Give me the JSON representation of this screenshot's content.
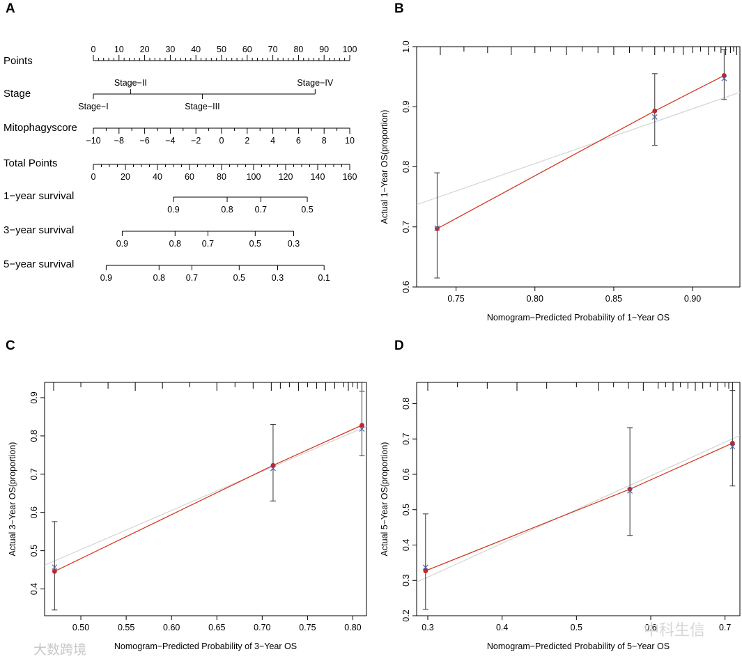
{
  "watermarks": {
    "left": "大数跨境",
    "right": "中科生信"
  },
  "chart_data": [
    {
      "panel": "A",
      "type": "nomogram",
      "rows": [
        {
          "label": "Points",
          "kind": "points",
          "ticks": [
            "0",
            "10",
            "20",
            "30",
            "40",
            "50",
            "60",
            "70",
            "80",
            "90",
            "100"
          ],
          "tick_values": [
            0,
            10,
            20,
            30,
            40,
            50,
            60,
            70,
            80,
            90,
            100
          ]
        },
        {
          "label": "Stage",
          "kind": "categorical",
          "levels": [
            {
              "name": "Stage−I",
              "points": 0,
              "side": "below"
            },
            {
              "name": "Stage−II",
              "points": 14.5,
              "side": "above"
            },
            {
              "name": "Stage−III",
              "points": 42.5,
              "side": "below"
            },
            {
              "name": "Stage−IV",
              "points": 86.5,
              "side": "above"
            }
          ]
        },
        {
          "label": "Mitophagyscore",
          "kind": "continuous",
          "ticks": [
            "−10",
            "−8",
            "−6",
            "−4",
            "−2",
            "0",
            "2",
            "4",
            "6",
            "8",
            "10"
          ],
          "tick_values": [
            -10,
            -8,
            -6,
            -4,
            -2,
            0,
            2,
            4,
            6,
            8,
            10
          ],
          "range": [
            -10,
            10
          ]
        },
        {
          "label": "Total Points",
          "kind": "total",
          "ticks": [
            "0",
            "20",
            "40",
            "60",
            "80",
            "100",
            "120",
            "140",
            "160"
          ],
          "tick_values": [
            0,
            20,
            40,
            60,
            80,
            100,
            120,
            140,
            160
          ]
        },
        {
          "label": "1−year survival",
          "kind": "survival",
          "ticks": [
            "0.9",
            "0.8",
            "0.7",
            "0.5"
          ],
          "tick_positions_total": [
            50,
            83.5,
            104.5,
            133.5
          ],
          "line_total": [
            50,
            133.5
          ]
        },
        {
          "label": "3−year survival",
          "kind": "survival",
          "ticks": [
            "0.9",
            "0.8",
            "0.7",
            "0.5",
            "0.3"
          ],
          "tick_positions_total": [
            18,
            51,
            71.5,
            101,
            125
          ],
          "line_total": [
            18,
            125
          ]
        },
        {
          "label": "5−year survival",
          "kind": "survival",
          "ticks": [
            "0.9",
            "0.8",
            "0.7",
            "0.5",
            "0.3",
            "0.1"
          ],
          "tick_positions_total": [
            8,
            41,
            61.5,
            91,
            115,
            144
          ],
          "line_total": [
            8,
            144
          ]
        }
      ]
    },
    {
      "panel": "B",
      "type": "calibration",
      "xlabel": "Nomogram−Predicted Probability of 1−Year OS",
      "ylabel": "Actual 1−Year OS(proportion)",
      "xlim": [
        0.725,
        0.93
      ],
      "ylim": [
        0.6,
        1.0
      ],
      "xticks": [
        0.75,
        0.8,
        0.85,
        0.9
      ],
      "xtick_labels": [
        "0.75",
        "0.80",
        "0.85",
        "0.90"
      ],
      "yticks": [
        0.6,
        0.7,
        0.8,
        0.9,
        1.0
      ],
      "ytick_labels": [
        "0.6",
        "0.7",
        "0.8",
        "0.9",
        "1.0"
      ],
      "points": [
        {
          "x": 0.738,
          "observed": 0.697,
          "corrected": 0.698,
          "lower": 0.615,
          "upper": 0.79
        },
        {
          "x": 0.876,
          "observed": 0.893,
          "corrected": 0.883,
          "lower": 0.836,
          "upper": 0.955
        },
        {
          "x": 0.92,
          "observed": 0.952,
          "corrected": 0.947,
          "lower": 0.912,
          "upper": 0.995
        }
      ],
      "ideal_line": [
        [
          0.725,
          0.737
        ],
        [
          0.93,
          0.924
        ]
      ],
      "rug": [
        0.74,
        0.755,
        0.77,
        0.785,
        0.8,
        0.81,
        0.82,
        0.83,
        0.84,
        0.85,
        0.86,
        0.868,
        0.876,
        0.882,
        0.888,
        0.894,
        0.9,
        0.905,
        0.91,
        0.914,
        0.918,
        0.921,
        0.924,
        0.926,
        0.928
      ]
    },
    {
      "panel": "C",
      "type": "calibration",
      "xlabel": "Nomogram−Predicted Probability of 3−Year OS",
      "ylabel": "Actual 3−Year OS(proportion)",
      "xlim": [
        0.46,
        0.815
      ],
      "ylim": [
        0.33,
        0.94
      ],
      "xticks": [
        0.5,
        0.55,
        0.6,
        0.65,
        0.7,
        0.75,
        0.8
      ],
      "xtick_labels": [
        "0.50",
        "0.55",
        "0.60",
        "0.65",
        "0.70",
        "0.75",
        "0.80"
      ],
      "yticks": [
        0.4,
        0.5,
        0.6,
        0.7,
        0.8,
        0.9
      ],
      "ytick_labels": [
        "0.4",
        "0.5",
        "0.6",
        "0.7",
        "0.8",
        "0.9"
      ],
      "points": [
        {
          "x": 0.471,
          "observed": 0.446,
          "corrected": 0.457,
          "lower": 0.345,
          "upper": 0.576
        },
        {
          "x": 0.712,
          "observed": 0.723,
          "corrected": 0.715,
          "lower": 0.63,
          "upper": 0.83
        },
        {
          "x": 0.81,
          "observed": 0.828,
          "corrected": 0.818,
          "lower": 0.748,
          "upper": 0.917
        }
      ],
      "ideal_line": [
        [
          0.46,
          0.462
        ],
        [
          0.815,
          0.825
        ]
      ],
      "rug": [
        0.47,
        0.5,
        0.53,
        0.56,
        0.59,
        0.62,
        0.65,
        0.67,
        0.69,
        0.71,
        0.72,
        0.73,
        0.74,
        0.75,
        0.76,
        0.77,
        0.78,
        0.79,
        0.795,
        0.8,
        0.805,
        0.81
      ]
    },
    {
      "panel": "D",
      "type": "calibration",
      "xlabel": "Nomogram−Predicted Probability of 5−Year OS",
      "ylabel": "Actual 5−Year OS(proportion)",
      "xlim": [
        0.285,
        0.72
      ],
      "ylim": [
        0.2,
        0.86
      ],
      "xticks": [
        0.3,
        0.4,
        0.5,
        0.6,
        0.7
      ],
      "xtick_labels": [
        "0.3",
        "0.4",
        "0.5",
        "0.6",
        "0.7"
      ],
      "yticks": [
        0.2,
        0.3,
        0.4,
        0.5,
        0.6,
        0.7,
        0.8
      ],
      "ytick_labels": [
        "0.2",
        "0.3",
        "0.4",
        "0.5",
        "0.6",
        "0.7",
        "0.8"
      ],
      "points": [
        {
          "x": 0.297,
          "observed": 0.327,
          "corrected": 0.337,
          "lower": 0.218,
          "upper": 0.488
        },
        {
          "x": 0.572,
          "observed": 0.558,
          "corrected": 0.553,
          "lower": 0.427,
          "upper": 0.732
        },
        {
          "x": 0.71,
          "observed": 0.688,
          "corrected": 0.678,
          "lower": 0.567,
          "upper": 0.837
        }
      ],
      "ideal_line": [
        [
          0.285,
          0.295
        ],
        [
          0.72,
          0.71
        ]
      ],
      "rug": [
        0.3,
        0.34,
        0.38,
        0.42,
        0.46,
        0.5,
        0.53,
        0.55,
        0.57,
        0.59,
        0.61,
        0.62,
        0.63,
        0.64,
        0.65,
        0.66,
        0.67,
        0.68,
        0.69,
        0.7,
        0.705,
        0.71
      ]
    }
  ]
}
